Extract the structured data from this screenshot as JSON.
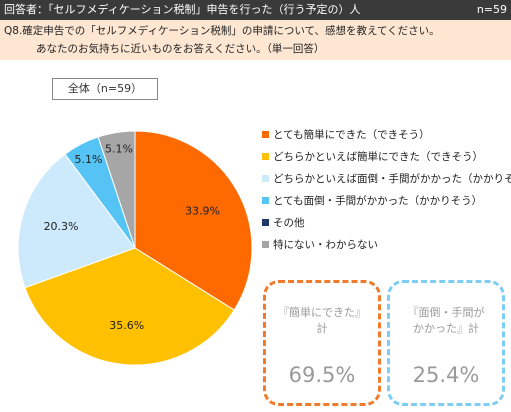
{
  "header": {
    "respondents": "回答者：「セルフメディケーション税制」申告を行った（行う予定の）人",
    "n": "n=59"
  },
  "question": {
    "line1": "Q8.確定申告での「セルフメディケーション税制」の申請について、感想を教えてください。",
    "line2": "あなたのお気持ちに近いものをお答えください。（単一回答）"
  },
  "chart_data": {
    "type": "pie",
    "title": "全体（n=59）",
    "categories": [
      "とても簡単にできた（できそう）",
      "どちらかといえば簡単にできた（できそう）",
      "どちらかといえば面倒・手間がかかった（かかりそう）",
      "とても面倒・手間がかかった（かかりそう）",
      "その他",
      "特にない・わからない"
    ],
    "values": [
      33.9,
      35.6,
      20.3,
      5.1,
      0.0,
      5.1
    ],
    "value_labels": [
      "33.9%",
      "35.6%",
      "20.3%",
      "5.1%",
      "",
      "5.1%"
    ],
    "colors": [
      "#ff6a00",
      "#ffc000",
      "#cdeafc",
      "#56c3f5",
      "#1f3864",
      "#a6a6a6"
    ],
    "legend_position": "right"
  },
  "summary": [
    {
      "label_line1": "『簡単にできた』",
      "label_line2": "計",
      "value": "69.5%",
      "color": "#f07b2c"
    },
    {
      "label_line1": "『面倒・手間が",
      "label_line2": "かかった』計",
      "value": "25.4%",
      "color": "#7fcdf2"
    }
  ]
}
